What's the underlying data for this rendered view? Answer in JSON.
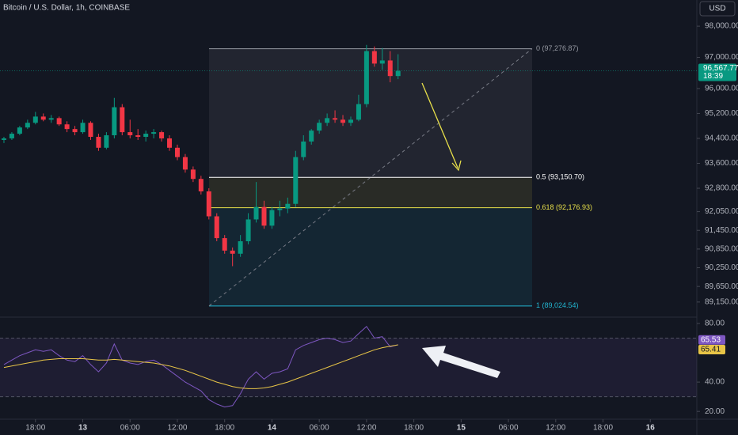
{
  "chart_data": [
    {
      "type": "candlestick",
      "title": "Bitcoin / U.S. Dollar, 1h, COINBASE",
      "currency": "USD",
      "countdown": "18:39",
      "last_price": {
        "value": 96567.77,
        "label": "96,567.77"
      },
      "categories": [
        null,
        null,
        null,
        null,
        null,
        null,
        null,
        null,
        null,
        null,
        null,
        null,
        null,
        null,
        null,
        null,
        null,
        null,
        null,
        null,
        null,
        null,
        null,
        null,
        null,
        null,
        null,
        null,
        null,
        null,
        null,
        null,
        null,
        null,
        null,
        null,
        null,
        null,
        null,
        null,
        null,
        null,
        null,
        null,
        null,
        null,
        null,
        null,
        null,
        null,
        null
      ],
      "open": [
        94350,
        94400,
        94550,
        94750,
        94900,
        95100,
        95000,
        95050,
        94850,
        94700,
        94600,
        94900,
        94450,
        94100,
        94500,
        95400,
        94600,
        94500,
        94450,
        94550,
        94600,
        94400,
        94100,
        93800,
        93400,
        93100,
        92700,
        91900,
        91200,
        90800,
        90700,
        91100,
        91800,
        92200,
        91600,
        92100,
        92150,
        92300,
        93800,
        94300,
        94650,
        94900,
        95050,
        95000,
        94900,
        95000,
        95500,
        97200,
        96800,
        96900,
        96400
      ],
      "high": [
        94450,
        94600,
        94800,
        95000,
        95250,
        95200,
        95150,
        95100,
        94950,
        94800,
        95000,
        94950,
        94550,
        94600,
        95700,
        95500,
        95000,
        94700,
        94650,
        94700,
        94650,
        94500,
        94200,
        93900,
        93500,
        93200,
        92800,
        92000,
        91300,
        90900,
        91300,
        92000,
        93000,
        92400,
        92200,
        92400,
        92500,
        94000,
        94500,
        94700,
        95000,
        95200,
        95300,
        95150,
        95100,
        95800,
        97400,
        97350,
        97300,
        97200,
        97100
      ],
      "low": [
        94250,
        94350,
        94500,
        94700,
        94850,
        94950,
        94900,
        94800,
        94600,
        94500,
        94550,
        94350,
        94000,
        94050,
        94400,
        94500,
        94400,
        94350,
        94300,
        94400,
        94300,
        94000,
        93700,
        93300,
        93000,
        92600,
        91800,
        91100,
        90700,
        90300,
        90600,
        91000,
        91700,
        91500,
        91500,
        91900,
        92000,
        92200,
        93700,
        94200,
        94550,
        94800,
        94900,
        94800,
        94800,
        94950,
        95400,
        96700,
        96600,
        96200,
        96300
      ],
      "close": [
        94400,
        94550,
        94750,
        94900,
        95100,
        95000,
        95050,
        94850,
        94700,
        94600,
        94900,
        94450,
        94100,
        94500,
        95400,
        94600,
        94500,
        94450,
        94550,
        94600,
        94400,
        94100,
        93800,
        93400,
        93100,
        92700,
        91900,
        91200,
        90800,
        90700,
        91100,
        91800,
        92200,
        91600,
        92100,
        92150,
        92300,
        93800,
        94300,
        94650,
        94900,
        95050,
        95000,
        94900,
        95000,
        95500,
        97200,
        96800,
        96900,
        96400,
        96567.77
      ],
      "up_color": "#089981",
      "down_color": "#f23645",
      "xlim": [
        -0.5,
        87.9
      ],
      "xticks": [
        {
          "value": 4,
          "label": "18:00"
        },
        {
          "value": 10,
          "label": "13"
        },
        {
          "value": 16,
          "label": "06:00"
        },
        {
          "value": 22,
          "label": "12:00"
        },
        {
          "value": 28,
          "label": "18:00"
        },
        {
          "value": 34,
          "label": "14"
        },
        {
          "value": 40,
          "label": "06:00"
        },
        {
          "value": 46,
          "label": "12:00"
        },
        {
          "value": 52,
          "label": "18:00"
        },
        {
          "value": 58,
          "label": "15"
        },
        {
          "value": 64,
          "label": "06:00"
        },
        {
          "value": 70,
          "label": "12:00"
        },
        {
          "value": 76,
          "label": "18:00"
        },
        {
          "value": 82,
          "label": "16"
        }
      ],
      "ylim": [
        88690,
        98840
      ],
      "yticks": [
        {
          "value": 98000,
          "label": "98,000.00"
        },
        {
          "value": 97000,
          "label": "97,000.00"
        },
        {
          "value": 96000,
          "label": "96,000.00"
        },
        {
          "value": 95200,
          "label": "95,200.00"
        },
        {
          "value": 94400,
          "label": "94,400.00"
        },
        {
          "value": 93600,
          "label": "93,600.00"
        },
        {
          "value": 92800,
          "label": "92,800.00"
        },
        {
          "value": 92050,
          "label": "92,050.00"
        },
        {
          "value": 91450,
          "label": "91,450.00"
        },
        {
          "value": 90850,
          "label": "90,850.00"
        },
        {
          "value": 90250,
          "label": "90,250.00"
        },
        {
          "value": 89650,
          "label": "89,650.00"
        },
        {
          "value": 89150,
          "label": "89,150.00"
        }
      ],
      "fib_levels": [
        {
          "value": 97276.87,
          "label": "0 (97,276.87)",
          "color": "#9598a1"
        },
        {
          "value": 93150.7,
          "label": "0.5 (93,150.70)",
          "color": "#ffffff"
        },
        {
          "value": 92176.93,
          "label": "0.618 (92,176.93)",
          "color": "#e8e04a"
        },
        {
          "value": 89024.54,
          "label": "1 (89,024.54)",
          "color": "#22b5d0"
        }
      ]
    },
    {
      "type": "line",
      "ylim": [
        14.7,
        84.3
      ],
      "yticks": [
        {
          "value": 80,
          "label": "80.00"
        },
        {
          "value": 40,
          "label": "40.00"
        },
        {
          "value": 20,
          "label": "20.00"
        }
      ],
      "bands": [
        70,
        30
      ],
      "series": [
        {
          "color": "#7e57c2",
          "values": [
            52,
            55,
            58,
            60,
            62,
            61,
            62,
            58,
            55,
            54,
            58,
            52,
            47,
            53,
            66,
            55,
            53,
            52,
            54,
            55,
            52,
            48,
            44,
            40,
            37,
            34,
            28,
            25,
            23,
            24,
            32,
            42,
            47,
            42,
            46,
            47,
            49,
            62,
            65,
            67,
            69,
            70,
            69,
            67,
            68,
            73,
            78,
            70,
            71,
            64,
            65.53
          ]
        },
        {
          "color": "#e8c547",
          "values": [
            50,
            51,
            52,
            53,
            54,
            55,
            55.5,
            56,
            56,
            56,
            56,
            55.5,
            55,
            55,
            55.5,
            55,
            54.5,
            54,
            53.5,
            53,
            52,
            51,
            49.5,
            48,
            46,
            44,
            42,
            40,
            38.5,
            37,
            36,
            35.5,
            35.5,
            36,
            37,
            38.5,
            40,
            42,
            44,
            46,
            48,
            50,
            52,
            54,
            56,
            58,
            60,
            62,
            63.5,
            64.5,
            65.41
          ]
        }
      ]
    }
  ]
}
